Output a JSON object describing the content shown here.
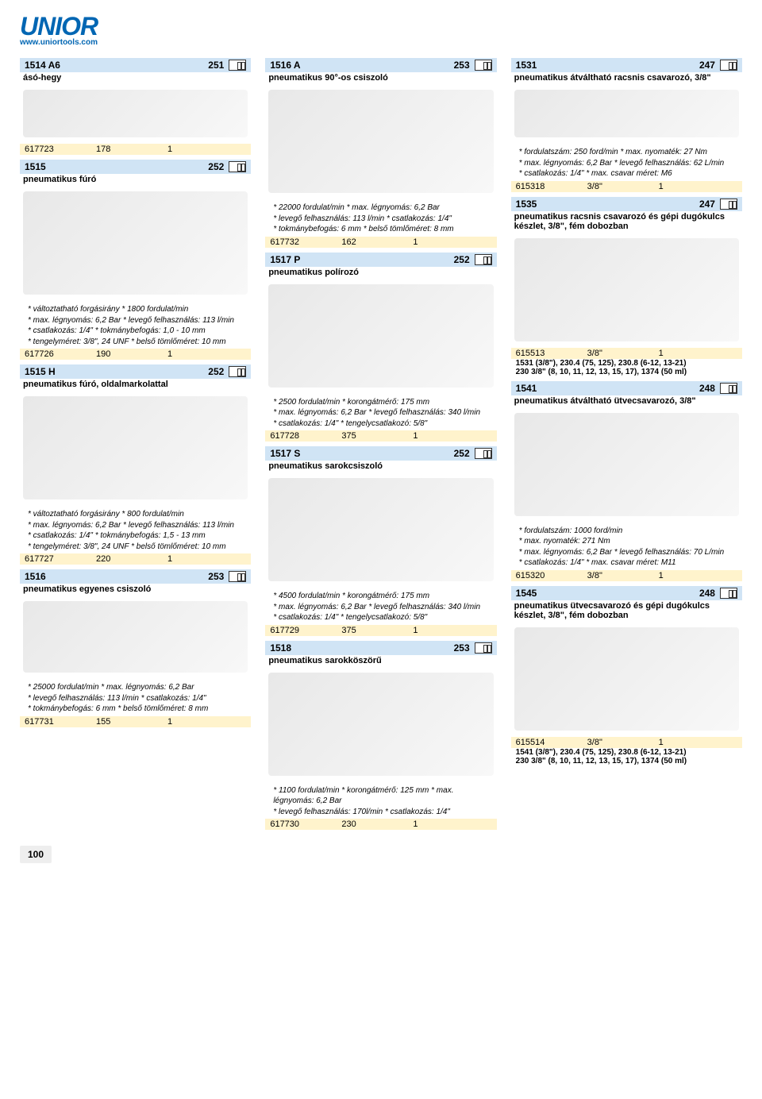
{
  "header": {
    "logo": "UNIOR",
    "url": "www.uniortools.com"
  },
  "page_number": "100",
  "col1": {
    "p1": {
      "code": "1514 A6",
      "page": "251",
      "desc": "ásó-hegy"
    },
    "p1_row": {
      "a": "617723",
      "b": "178",
      "c": "1"
    },
    "p2": {
      "code": "1515",
      "page": "252",
      "desc": "pneumatikus fúró"
    },
    "p2_specs": "* változtatható forgásirány * 1800 fordulat/min\n* max. légnyomás: 6,2 Bar * levegő felhasználás: 113 l/min\n* csatlakozás: 1/4\" * tokmánybefogás: 1,0 - 10 mm\n* tengelyméret: 3/8\", 24 UNF * belső tömlőméret: 10 mm",
    "p2_row": {
      "a": "617726",
      "b": "190",
      "c": "1"
    },
    "p3": {
      "code": "1515 H",
      "page": "252",
      "desc": "pneumatikus fúró, oldalmarkolattal"
    },
    "p3_specs": "* változtatható forgásirány * 800 fordulat/min\n* max. légnyomás: 6,2 Bar * levegő felhasználás: 113 l/min\n* csatlakozás: 1/4\" * tokmánybefogás: 1,5 - 13 mm\n* tengelyméret: 3/8\", 24 UNF * belső tömlőméret: 10 mm",
    "p3_row": {
      "a": "617727",
      "b": "220",
      "c": "1"
    },
    "p4": {
      "code": "1516",
      "page": "253",
      "desc": "pneumatikus egyenes csiszoló"
    },
    "p4_specs": "* 25000 fordulat/min * max. légnyomás: 6,2 Bar\n* levegő felhasználás: 113 l/min * csatlakozás: 1/4\"\n* tokmánybefogás: 6 mm * belső tömlőméret: 8 mm",
    "p4_row": {
      "a": "617731",
      "b": "155",
      "c": "1"
    }
  },
  "col2": {
    "p1": {
      "code": "1516 A",
      "page": "253",
      "desc": "pneumatikus 90°-os csiszoló"
    },
    "p1_specs": "* 22000 fordulat/min * max. légnyomás: 6,2 Bar\n* levegő felhasználás: 113 l/min * csatlakozás: 1/4\"\n* tokmánybefogás: 6 mm * belső tömlőméret: 8 mm",
    "p1_row": {
      "a": "617732",
      "b": "162",
      "c": "1"
    },
    "p2": {
      "code": "1517 P",
      "page": "252",
      "desc": "pneumatikus polírozó"
    },
    "p2_specs": "* 2500 fordulat/min * korongátmérő: 175 mm\n* max. légnyomás: 6,2 Bar * levegő felhasználás: 340 l/min\n* csatlakozás: 1/4\" * tengelycsatlakozó: 5/8\"",
    "p2_row": {
      "a": "617728",
      "b": "375",
      "c": "1"
    },
    "p3": {
      "code": "1517 S",
      "page": "252",
      "desc": "pneumatikus sarokcsiszoló"
    },
    "p3_specs": "* 4500 fordulat/min * korongátmérő: 175 mm\n* max. légnyomás: 6,2 Bar * levegő felhasználás: 340 l/min\n* csatlakozás: 1/4\" * tengelycsatlakozó: 5/8\"",
    "p3_row": {
      "a": "617729",
      "b": "375",
      "c": "1"
    },
    "p4": {
      "code": "1518",
      "page": "253",
      "desc": "pneumatikus sarokköszörű"
    },
    "p4_specs": "* 1100 fordulat/min * korongátmérő: 125 mm * max. légnyomás: 6,2 Bar\n* levegő felhasználás: 170l/min * csatlakozás: 1/4\"",
    "p4_row": {
      "a": "617730",
      "b": "230",
      "c": "1"
    }
  },
  "col3": {
    "p1": {
      "code": "1531",
      "page": "247",
      "desc": "pneumatikus átváltható racsnis csavarozó, 3/8\""
    },
    "p1_specs": "* fordulatszám: 250 ford/min * max. nyomaték: 27 Nm\n* max. légnyomás: 6,2 Bar * levegő felhasználás: 62 L/min\n* csatlakozás: 1/4\" * max. csavar méret: M6",
    "p1_row": {
      "a": "615318",
      "b": "3/8\"",
      "c": "1"
    },
    "p2": {
      "code": "1535",
      "page": "247",
      "desc": "pneumatikus racsnis csavarozó és gépi dugókulcs készlet, 3/8\", fém dobozban"
    },
    "p2_row": {
      "a": "615513",
      "b": "3/8\"",
      "c": "1"
    },
    "p2_sub": "1531 (3/8\"), 230.4 (75, 125), 230.8 (6-12, 13-21)\n230 3/8\" (8, 10, 11, 12, 13, 15, 17), 1374 (50 ml)",
    "p3": {
      "code": "1541",
      "page": "248",
      "desc": "pneumatikus átváltható ütvecsavarozó, 3/8\""
    },
    "p3_specs": "* fordulatszám: 1000 ford/min\n* max. nyomaték: 271 Nm\n* max. légnyomás: 6,2 Bar * levegő felhasználás: 70 L/min\n* csatlakozás: 1/4\" * max. csavar méret: M11",
    "p3_row": {
      "a": "615320",
      "b": "3/8\"",
      "c": "1"
    },
    "p4": {
      "code": "1545",
      "page": "248",
      "desc": "pneumatikus ütvecsavarozó és gépi dugókulcs készlet, 3/8\", fém dobozban"
    },
    "p4_row": {
      "a": "615514",
      "b": "3/8\"",
      "c": "1"
    },
    "p4_sub": "1541 (3/8\"), 230.4 (75, 125), 230.8 (6-12, 13-21)\n230 3/8\" (8, 10, 11, 12, 13, 15, 17), 1374 (50 ml)"
  }
}
